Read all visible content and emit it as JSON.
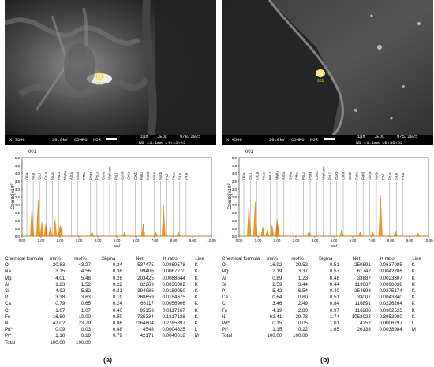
{
  "panels": [
    {
      "caption": "(a)",
      "sem": {
        "magnification": "X 750C",
        "voltage": "20.0kV",
        "mode": "COMPO",
        "nor": "NOR",
        "scale": "1μm",
        "brand": "JEOL",
        "date": "9/8/2025",
        "wd": "WD 11.1mm 14:13:42",
        "point_label": "001"
      },
      "spectrum": {
        "id": "001",
        "ylabel": "Counts[x10³]",
        "xlabel": "keV",
        "y_ticks": [
          "5.0",
          "4.5",
          "4.0",
          "3.5",
          "3.0",
          "2.5",
          "2.0",
          "1.5",
          "1.0",
          "0.5",
          "0.0"
        ],
        "x_ticks": [
          "0.00",
          "1.00",
          "2.00",
          "3.00",
          "4.00",
          "5.00",
          "6.00",
          "7.00",
          "8.00",
          "9.00",
          "10.00"
        ],
        "peak_labels": [
          "OKa",
          "NKa",
          "CrLl",
          "CrLa",
          "NiLa",
          "FeLa",
          "MgKa",
          "AlKa",
          "SiKa",
          "PMa",
          "PtMz",
          "PdLa",
          "CaKa",
          "MgKsum",
          "PdLl",
          "CaKb",
          "CrKa",
          "CrKb",
          "FeKa",
          "FeKb",
          "NiKa",
          "NiKb",
          "PtLl",
          "PtLa",
          "SKa",
          "PKa"
        ]
      },
      "table": {
        "headers": [
          "Chemical formula",
          "ms%",
          "mol%",
          "Sigma",
          "Net",
          "K ratio",
          "Line"
        ],
        "rows": [
          [
            "O",
            "20.83",
            "43.27",
            "0.24",
            "537475",
            "0.0869578",
            "K"
          ],
          [
            "Na",
            "3.15",
            "4.56",
            "0.38",
            "99406",
            "0.0067270",
            "K"
          ],
          [
            "Mg",
            "4.01",
            "5.48",
            "0.26",
            "203425",
            "0.0088644",
            "K"
          ],
          [
            "Al",
            "1.23",
            "1.52",
            "0.22",
            "82269",
            "0.0036002",
            "K"
          ],
          [
            "Si",
            "4.92",
            "5.82",
            "0.21",
            "394986",
            "0.0189050",
            "K"
          ],
          [
            "P",
            "3.38",
            "3.63",
            "0.19",
            "268659",
            "0.0184675",
            "K"
          ],
          [
            "Ca",
            "0.79",
            "0.65",
            "0.24",
            "68117",
            "0.0056906",
            "K"
          ],
          [
            "Cr",
            "1.67",
            "1.07",
            "0.40",
            "95153",
            "0.0117167",
            "K"
          ],
          [
            "Fe",
            "16.80",
            "10.00",
            "0.50",
            "735334",
            "0.1217128",
            "K"
          ],
          [
            "Ni",
            "42.02",
            "23.79",
            "0.86",
            "1164804",
            "0.2785397",
            "K"
          ],
          [
            "Pd*",
            "0.09",
            "0.03",
            "0.48",
            "4548",
            "0.0004625",
            "L"
          ],
          [
            "Pt*",
            "1.10",
            "0.19",
            "0.79",
            "42171",
            "0.0040018",
            "M"
          ],
          [
            "Total",
            "100.00",
            "100.00",
            "",
            "",
            "",
            ""
          ]
        ]
      }
    },
    {
      "caption": "(b)",
      "sem": {
        "magnification": "X 4500",
        "voltage": "20.0kV",
        "mode": "COMPO",
        "nor": "NOR",
        "scale": "1μm",
        "brand": "JEOL",
        "date": "9/5/2025",
        "wd": "WD 11.1mm 15:38:02",
        "point_label": "001"
      },
      "spectrum": {
        "id": "001",
        "ylabel": "Counts[x10³]",
        "xlabel": "keV",
        "y_ticks": [
          "5.0",
          "4.5",
          "4.0",
          "3.5",
          "3.0",
          "2.5",
          "2.0",
          "1.5",
          "1.0",
          "0.5",
          "0.0"
        ],
        "x_ticks": [
          "0.00",
          "1.00",
          "2.00",
          "3.00",
          "4.00",
          "5.00",
          "6.00",
          "7.00",
          "8.00",
          "9.00",
          "10.00"
        ],
        "peak_labels": [
          "OKa",
          "CrLl",
          "CrLa",
          "NiLa",
          "FeLa",
          "MgKa",
          "AlKa",
          "SiKa",
          "PMa",
          "PdLa",
          "PtMz",
          "CaKa",
          "MgKsum",
          "PdLl",
          "CaKb",
          "CrKa",
          "CrKb",
          "FeKa",
          "FeKb",
          "NiKa",
          "NiKb",
          "PtLl",
          "PtLa",
          "SKa",
          "PKa"
        ]
      },
      "table": {
        "headers": [
          "Chemical formula",
          "ms%",
          "mol%",
          "Sigma",
          "Net",
          "K ratio",
          "Line"
        ],
        "rows": [
          [
            "O",
            "16.92",
            "39.52",
            "0.51",
            "250891",
            "0.0637985",
            "K"
          ],
          [
            "Mg",
            "2.19",
            "3.37",
            "0.57",
            "61742",
            "0.0042286",
            "K"
          ],
          [
            "Al",
            "0.89",
            "1.23",
            "0.48",
            "33887",
            "0.0023307",
            "K"
          ],
          [
            "Si",
            "2.59",
            "3.44",
            "0.44",
            "119687",
            "0.0090036",
            "K"
          ],
          [
            "P",
            "5.42",
            "6.54",
            "0.40",
            "254698",
            "0.0275174",
            "K"
          ],
          [
            "Ca",
            "0.64",
            "0.60",
            "0.51",
            "33007",
            "0.0043340",
            "K"
          ],
          [
            "Cr",
            "3.46",
            "2.49",
            "0.84",
            "116891",
            "0.0226264",
            "K"
          ],
          [
            "Fe",
            "4.19",
            "2.80",
            "0.97",
            "116288",
            "0.0302525",
            "K"
          ],
          [
            "Ni",
            "62.41",
            "39.73",
            "1.74",
            "1052023",
            "0.3953980",
            "K"
          ],
          [
            "Pd*",
            "0.15",
            "0.05",
            "1.01",
            "4252",
            "0.0006797",
            "L"
          ],
          [
            "Pt*",
            "1.15",
            "0.22",
            "1.65",
            "26138",
            "0.0038984",
            "M"
          ],
          [
            "Total",
            "100.00",
            "100.00",
            "",
            "",
            "",
            ""
          ]
        ]
      }
    }
  ]
}
